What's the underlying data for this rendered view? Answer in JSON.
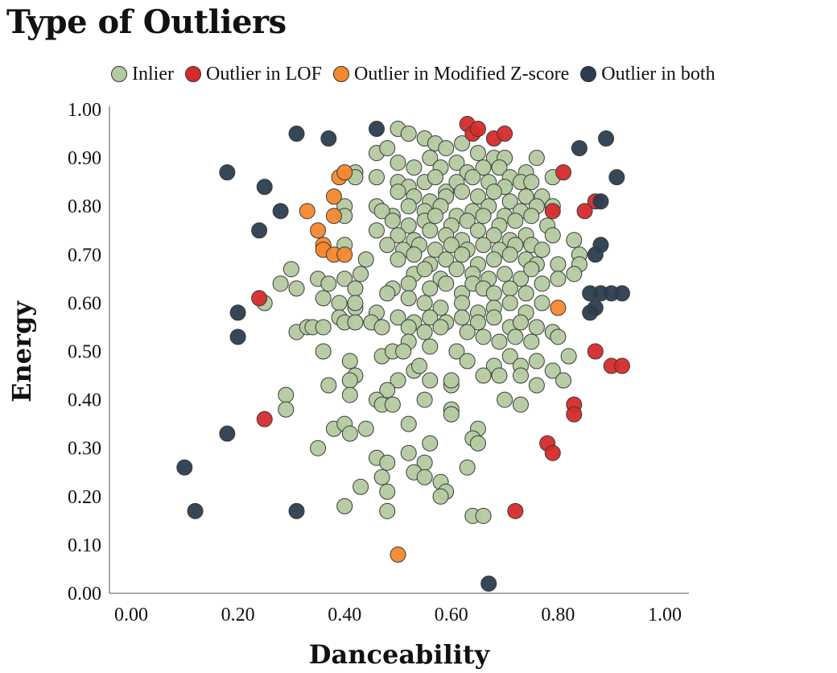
{
  "title": "Type of Outliers",
  "legend": [
    {
      "label": "Inlier",
      "color": "#b4caa0"
    },
    {
      "label": "Outlier in LOF",
      "color": "#d62b2b"
    },
    {
      "label": "Outlier in Modified Z-score",
      "color": "#f5872e"
    },
    {
      "label": "Outlier in both",
      "color": "#2b3d4e"
    }
  ],
  "chart_data": {
    "type": "scatter",
    "xlabel": "Danceability",
    "ylabel": "Energy",
    "xlim": [
      0,
      1
    ],
    "ylim": [
      0,
      1
    ],
    "x_ticks": [
      "0.00",
      "0.20",
      "0.40",
      "0.60",
      "0.80",
      "1.00"
    ],
    "y_ticks": [
      "0.00",
      "0.10",
      "0.20",
      "0.30",
      "0.40",
      "0.50",
      "0.60",
      "0.70",
      "0.80",
      "0.90",
      "1.00"
    ],
    "grid": false,
    "legend_position": "top",
    "series": [
      {
        "name": "Inlier",
        "color": "#b4caa0",
        "points": [
          [
            0.5,
            0.96
          ],
          [
            0.52,
            0.95
          ],
          [
            0.55,
            0.94
          ],
          [
            0.57,
            0.93
          ],
          [
            0.59,
            0.92
          ],
          [
            0.62,
            0.93
          ],
          [
            0.65,
            0.91
          ],
          [
            0.68,
            0.9
          ],
          [
            0.7,
            0.9
          ],
          [
            0.76,
            0.9
          ],
          [
            0.46,
            0.91
          ],
          [
            0.48,
            0.92
          ],
          [
            0.5,
            0.89
          ],
          [
            0.53,
            0.88
          ],
          [
            0.56,
            0.9
          ],
          [
            0.58,
            0.88
          ],
          [
            0.61,
            0.89
          ],
          [
            0.63,
            0.87
          ],
          [
            0.66,
            0.88
          ],
          [
            0.69,
            0.88
          ],
          [
            0.71,
            0.86
          ],
          [
            0.74,
            0.87
          ],
          [
            0.79,
            0.86
          ],
          [
            0.42,
            0.87
          ],
          [
            0.42,
            0.86
          ],
          [
            0.46,
            0.86
          ],
          [
            0.5,
            0.85
          ],
          [
            0.52,
            0.84
          ],
          [
            0.55,
            0.85
          ],
          [
            0.57,
            0.86
          ],
          [
            0.59,
            0.83
          ],
          [
            0.61,
            0.85
          ],
          [
            0.64,
            0.86
          ],
          [
            0.67,
            0.85
          ],
          [
            0.7,
            0.84
          ],
          [
            0.73,
            0.85
          ],
          [
            0.75,
            0.85
          ],
          [
            0.5,
            0.83
          ],
          [
            0.53,
            0.82
          ],
          [
            0.56,
            0.81
          ],
          [
            0.59,
            0.82
          ],
          [
            0.62,
            0.83
          ],
          [
            0.65,
            0.82
          ],
          [
            0.68,
            0.83
          ],
          [
            0.71,
            0.81
          ],
          [
            0.74,
            0.82
          ],
          [
            0.77,
            0.82
          ],
          [
            0.79,
            0.8
          ],
          [
            0.4,
            0.8
          ],
          [
            0.46,
            0.8
          ],
          [
            0.49,
            0.78
          ],
          [
            0.52,
            0.8
          ],
          [
            0.55,
            0.79
          ],
          [
            0.58,
            0.8
          ],
          [
            0.61,
            0.78
          ],
          [
            0.64,
            0.79
          ],
          [
            0.67,
            0.8
          ],
          [
            0.7,
            0.78
          ],
          [
            0.73,
            0.79
          ],
          [
            0.76,
            0.8
          ],
          [
            0.4,
            0.78
          ],
          [
            0.47,
            0.79
          ],
          [
            0.49,
            0.77
          ],
          [
            0.52,
            0.76
          ],
          [
            0.55,
            0.77
          ],
          [
            0.57,
            0.78
          ],
          [
            0.6,
            0.76
          ],
          [
            0.63,
            0.77
          ],
          [
            0.66,
            0.78
          ],
          [
            0.69,
            0.76
          ],
          [
            0.72,
            0.77
          ],
          [
            0.75,
            0.78
          ],
          [
            0.78,
            0.76
          ],
          [
            0.46,
            0.75
          ],
          [
            0.5,
            0.74
          ],
          [
            0.53,
            0.73
          ],
          [
            0.56,
            0.75
          ],
          [
            0.59,
            0.74
          ],
          [
            0.62,
            0.73
          ],
          [
            0.65,
            0.75
          ],
          [
            0.68,
            0.74
          ],
          [
            0.71,
            0.73
          ],
          [
            0.74,
            0.74
          ],
          [
            0.79,
            0.74
          ],
          [
            0.83,
            0.73
          ],
          [
            0.4,
            0.72
          ],
          [
            0.48,
            0.72
          ],
          [
            0.51,
            0.71
          ],
          [
            0.54,
            0.72
          ],
          [
            0.57,
            0.71
          ],
          [
            0.6,
            0.72
          ],
          [
            0.63,
            0.71
          ],
          [
            0.66,
            0.72
          ],
          [
            0.69,
            0.71
          ],
          [
            0.72,
            0.72
          ],
          [
            0.75,
            0.72
          ],
          [
            0.77,
            0.71
          ],
          [
            0.84,
            0.7
          ],
          [
            0.44,
            0.69
          ],
          [
            0.5,
            0.69
          ],
          [
            0.53,
            0.7
          ],
          [
            0.56,
            0.68
          ],
          [
            0.59,
            0.69
          ],
          [
            0.62,
            0.7
          ],
          [
            0.65,
            0.68
          ],
          [
            0.68,
            0.69
          ],
          [
            0.71,
            0.7
          ],
          [
            0.74,
            0.69
          ],
          [
            0.76,
            0.68
          ],
          [
            0.8,
            0.68
          ],
          [
            0.84,
            0.68
          ],
          [
            0.43,
            0.66
          ],
          [
            0.53,
            0.66
          ],
          [
            0.55,
            0.67
          ],
          [
            0.58,
            0.65
          ],
          [
            0.61,
            0.67
          ],
          [
            0.64,
            0.66
          ],
          [
            0.67,
            0.65
          ],
          [
            0.7,
            0.66
          ],
          [
            0.73,
            0.65
          ],
          [
            0.75,
            0.67
          ],
          [
            0.83,
            0.66
          ],
          [
            0.28,
            0.64
          ],
          [
            0.35,
            0.65
          ],
          [
            0.37,
            0.64
          ],
          [
            0.4,
            0.65
          ],
          [
            0.42,
            0.63
          ],
          [
            0.49,
            0.63
          ],
          [
            0.52,
            0.64
          ],
          [
            0.56,
            0.63
          ],
          [
            0.59,
            0.64
          ],
          [
            0.62,
            0.62
          ],
          [
            0.64,
            0.64
          ],
          [
            0.66,
            0.63
          ],
          [
            0.68,
            0.62
          ],
          [
            0.71,
            0.63
          ],
          [
            0.74,
            0.62
          ],
          [
            0.77,
            0.64
          ],
          [
            0.8,
            0.65
          ],
          [
            0.3,
            0.67
          ],
          [
            0.31,
            0.63
          ],
          [
            0.25,
            0.6
          ],
          [
            0.36,
            0.61
          ],
          [
            0.39,
            0.6
          ],
          [
            0.42,
            0.59
          ],
          [
            0.48,
            0.62
          ],
          [
            0.52,
            0.61
          ],
          [
            0.55,
            0.6
          ],
          [
            0.58,
            0.59
          ],
          [
            0.62,
            0.6
          ],
          [
            0.65,
            0.58
          ],
          [
            0.68,
            0.59
          ],
          [
            0.71,
            0.6
          ],
          [
            0.74,
            0.58
          ],
          [
            0.77,
            0.6
          ],
          [
            0.42,
            0.6
          ],
          [
            0.46,
            0.58
          ],
          [
            0.5,
            0.57
          ],
          [
            0.53,
            0.56
          ],
          [
            0.56,
            0.57
          ],
          [
            0.59,
            0.56
          ],
          [
            0.62,
            0.57
          ],
          [
            0.65,
            0.56
          ],
          [
            0.68,
            0.57
          ],
          [
            0.71,
            0.55
          ],
          [
            0.73,
            0.56
          ],
          [
            0.76,
            0.55
          ],
          [
            0.79,
            0.54
          ],
          [
            0.31,
            0.54
          ],
          [
            0.33,
            0.55
          ],
          [
            0.34,
            0.55
          ],
          [
            0.36,
            0.55
          ],
          [
            0.39,
            0.57
          ],
          [
            0.4,
            0.56
          ],
          [
            0.42,
            0.56
          ],
          [
            0.45,
            0.56
          ],
          [
            0.47,
            0.55
          ],
          [
            0.52,
            0.55
          ],
          [
            0.55,
            0.54
          ],
          [
            0.58,
            0.55
          ],
          [
            0.63,
            0.54
          ],
          [
            0.66,
            0.53
          ],
          [
            0.69,
            0.52
          ],
          [
            0.72,
            0.53
          ],
          [
            0.75,
            0.52
          ],
          [
            0.8,
            0.53
          ],
          [
            0.52,
            0.52
          ],
          [
            0.56,
            0.51
          ],
          [
            0.61,
            0.5
          ],
          [
            0.63,
            0.48
          ],
          [
            0.68,
            0.47
          ],
          [
            0.71,
            0.49
          ],
          [
            0.73,
            0.47
          ],
          [
            0.76,
            0.48
          ],
          [
            0.79,
            0.46
          ],
          [
            0.82,
            0.49
          ],
          [
            0.36,
            0.5
          ],
          [
            0.41,
            0.48
          ],
          [
            0.47,
            0.49
          ],
          [
            0.49,
            0.5
          ],
          [
            0.51,
            0.5
          ],
          [
            0.53,
            0.46
          ],
          [
            0.54,
            0.47
          ],
          [
            0.56,
            0.44
          ],
          [
            0.6,
            0.43
          ],
          [
            0.66,
            0.45
          ],
          [
            0.69,
            0.45
          ],
          [
            0.73,
            0.45
          ],
          [
            0.76,
            0.43
          ],
          [
            0.81,
            0.44
          ],
          [
            0.42,
            0.45
          ],
          [
            0.41,
            0.44
          ],
          [
            0.5,
            0.44
          ],
          [
            0.37,
            0.43
          ],
          [
            0.48,
            0.42
          ],
          [
            0.46,
            0.4
          ],
          [
            0.41,
            0.41
          ],
          [
            0.55,
            0.4
          ],
          [
            0.6,
            0.44
          ],
          [
            0.7,
            0.4
          ],
          [
            0.73,
            0.39
          ],
          [
            0.29,
            0.41
          ],
          [
            0.29,
            0.38
          ],
          [
            0.47,
            0.39
          ],
          [
            0.49,
            0.39
          ],
          [
            0.6,
            0.38
          ],
          [
            0.6,
            0.37
          ],
          [
            0.38,
            0.34
          ],
          [
            0.4,
            0.35
          ],
          [
            0.41,
            0.33
          ],
          [
            0.44,
            0.34
          ],
          [
            0.52,
            0.35
          ],
          [
            0.65,
            0.34
          ],
          [
            0.35,
            0.3
          ],
          [
            0.52,
            0.29
          ],
          [
            0.56,
            0.31
          ],
          [
            0.64,
            0.32
          ],
          [
            0.65,
            0.31
          ],
          [
            0.46,
            0.28
          ],
          [
            0.48,
            0.27
          ],
          [
            0.55,
            0.27
          ],
          [
            0.63,
            0.26
          ],
          [
            0.47,
            0.24
          ],
          [
            0.53,
            0.25
          ],
          [
            0.55,
            0.24
          ],
          [
            0.43,
            0.22
          ],
          [
            0.48,
            0.21
          ],
          [
            0.58,
            0.23
          ],
          [
            0.59,
            0.21
          ],
          [
            0.58,
            0.2
          ],
          [
            0.4,
            0.18
          ],
          [
            0.48,
            0.17
          ],
          [
            0.64,
            0.16
          ],
          [
            0.66,
            0.16
          ]
        ]
      },
      {
        "name": "Outlier in LOF",
        "color": "#d62b2b",
        "points": [
          [
            0.63,
            0.97
          ],
          [
            0.64,
            0.95
          ],
          [
            0.65,
            0.96
          ],
          [
            0.68,
            0.94
          ],
          [
            0.7,
            0.95
          ],
          [
            0.81,
            0.87
          ],
          [
            0.87,
            0.81
          ],
          [
            0.79,
            0.79
          ],
          [
            0.85,
            0.79
          ],
          [
            0.24,
            0.61
          ],
          [
            0.87,
            0.5
          ],
          [
            0.9,
            0.47
          ],
          [
            0.92,
            0.47
          ],
          [
            0.83,
            0.39
          ],
          [
            0.83,
            0.37
          ],
          [
            0.25,
            0.36
          ],
          [
            0.78,
            0.31
          ],
          [
            0.79,
            0.29
          ],
          [
            0.72,
            0.17
          ]
        ]
      },
      {
        "name": "Outlier in Modified Z-score",
        "color": "#f5872e",
        "points": [
          [
            0.39,
            0.86
          ],
          [
            0.4,
            0.87
          ],
          [
            0.38,
            0.82
          ],
          [
            0.33,
            0.79
          ],
          [
            0.38,
            0.78
          ],
          [
            0.35,
            0.75
          ],
          [
            0.36,
            0.72
          ],
          [
            0.36,
            0.71
          ],
          [
            0.38,
            0.7
          ],
          [
            0.4,
            0.7
          ],
          [
            0.8,
            0.59
          ],
          [
            0.5,
            0.08
          ]
        ]
      },
      {
        "name": "Outlier in both",
        "color": "#2b3d4e",
        "points": [
          [
            0.31,
            0.95
          ],
          [
            0.37,
            0.94
          ],
          [
            0.46,
            0.96
          ],
          [
            0.89,
            0.94
          ],
          [
            0.84,
            0.92
          ],
          [
            0.18,
            0.87
          ],
          [
            0.91,
            0.86
          ],
          [
            0.25,
            0.84
          ],
          [
            0.88,
            0.81
          ],
          [
            0.28,
            0.79
          ],
          [
            0.24,
            0.75
          ],
          [
            0.88,
            0.72
          ],
          [
            0.87,
            0.7
          ],
          [
            0.86,
            0.62
          ],
          [
            0.88,
            0.62
          ],
          [
            0.9,
            0.62
          ],
          [
            0.92,
            0.62
          ],
          [
            0.87,
            0.59
          ],
          [
            0.86,
            0.58
          ],
          [
            0.2,
            0.58
          ],
          [
            0.2,
            0.53
          ],
          [
            0.18,
            0.33
          ],
          [
            0.1,
            0.26
          ],
          [
            0.12,
            0.17
          ],
          [
            0.31,
            0.17
          ],
          [
            0.67,
            0.02
          ]
        ]
      }
    ]
  }
}
